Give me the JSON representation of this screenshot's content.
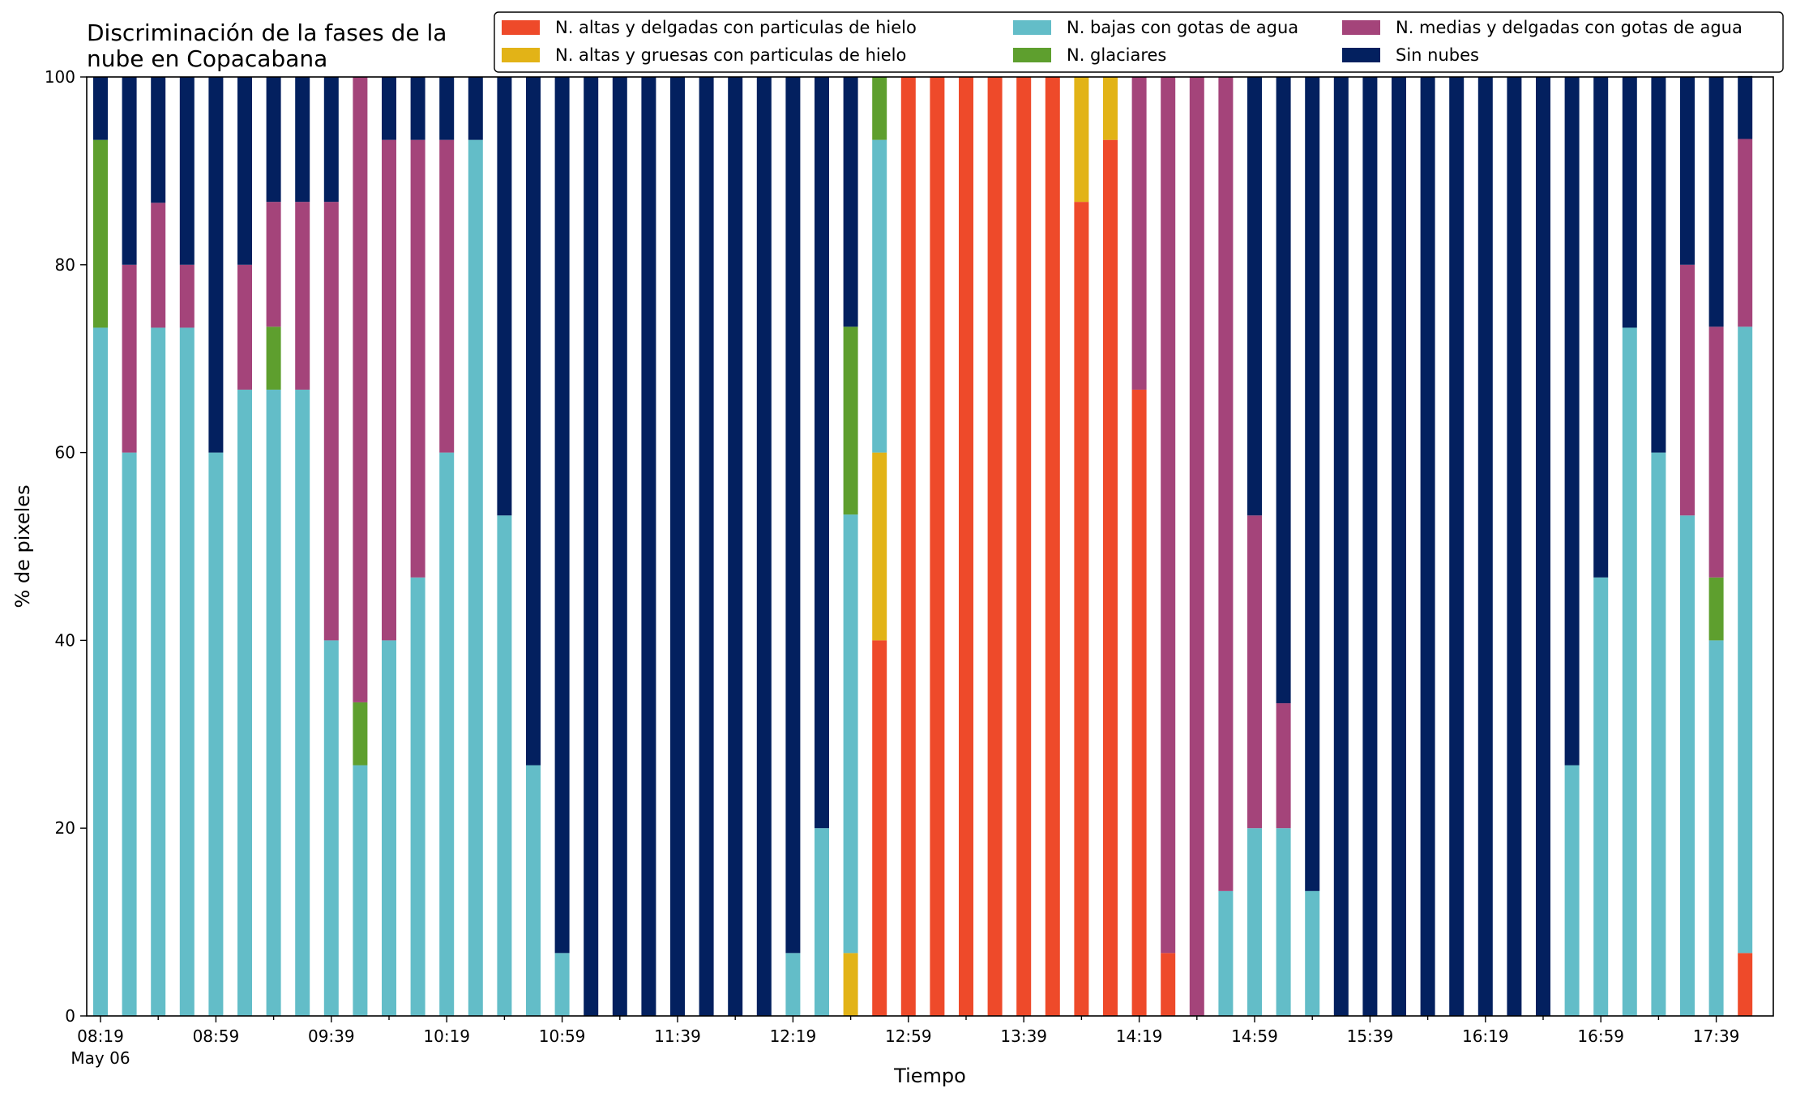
{
  "chart_data": {
    "type": "bar",
    "stacked": true,
    "title": "Discriminación de la fases de la\nnube en Copacabana",
    "xlabel": "Tiempo",
    "ylabel": "% de pixeles",
    "ylim": [
      0,
      100
    ],
    "yticks": [
      0,
      20,
      40,
      60,
      80,
      100
    ],
    "x_tick_labels": [
      "08:19",
      "08:59",
      "09:39",
      "10:19",
      "10:59",
      "11:39",
      "12:19",
      "12:59",
      "13:39",
      "14:19",
      "14:59",
      "15:39",
      "16:19",
      "16:59",
      "17:39"
    ],
    "x_date_label": "May 06",
    "legend_position": "top-right",
    "x": [
      "08:19",
      "08:29",
      "08:39",
      "08:49",
      "08:59",
      "09:09",
      "09:19",
      "09:29",
      "09:39",
      "09:49",
      "09:59",
      "10:09",
      "10:19",
      "10:29",
      "10:39",
      "10:49",
      "10:59",
      "11:09",
      "11:19",
      "11:29",
      "11:39",
      "11:49",
      "11:59",
      "12:09",
      "12:19",
      "12:29",
      "12:39",
      "12:49",
      "12:59",
      "13:09",
      "13:19",
      "13:29",
      "13:39",
      "13:49",
      "13:59",
      "14:09",
      "14:19",
      "14:29",
      "14:39",
      "14:49",
      "14:59",
      "15:09",
      "15:19",
      "15:29",
      "15:39",
      "15:49",
      "15:59",
      "16:09",
      "16:19",
      "16:29",
      "16:39",
      "16:49",
      "16:59",
      "17:09",
      "17:19",
      "17:29",
      "17:39",
      "17:49"
    ],
    "series": [
      {
        "name": "N. altas y delgadas con particulas de hielo",
        "color": "#EE4A2A",
        "values": [
          0,
          0,
          0,
          0,
          0,
          0,
          0,
          0,
          0,
          0,
          0,
          0,
          0,
          0,
          0,
          0,
          0,
          0,
          0,
          0,
          0,
          0,
          0,
          0,
          0,
          0,
          0,
          40,
          100,
          100,
          100,
          100,
          100,
          100,
          86.7,
          93.3,
          66.7,
          6.7,
          0,
          0,
          0,
          0,
          0,
          0,
          0,
          0,
          0,
          0,
          0,
          0,
          0,
          0,
          0,
          0,
          0,
          0,
          0,
          6.7
        ]
      },
      {
        "name": "N. altas y gruesas con particulas de hielo",
        "color": "#E2B317",
        "values": [
          0,
          0,
          0,
          0,
          0,
          0,
          0,
          0,
          0,
          0,
          0,
          0,
          0,
          0,
          0,
          0,
          0,
          0,
          0,
          0,
          0,
          0,
          0,
          0,
          0,
          0,
          6.7,
          20,
          0,
          0,
          0,
          0,
          0,
          0,
          13.3,
          6.7,
          0,
          0,
          0,
          0,
          0,
          0,
          0,
          0,
          0,
          0,
          0,
          0,
          0,
          0,
          0,
          0,
          0,
          0,
          0,
          0,
          0,
          0
        ]
      },
      {
        "name": "N. bajas con gotas de agua",
        "color": "#63BDC8",
        "values": [
          73.3,
          60,
          73.3,
          73.3,
          60,
          66.7,
          66.7,
          66.7,
          40,
          26.7,
          40,
          46.7,
          60,
          93.3,
          53.3,
          26.7,
          6.7,
          0,
          0,
          0,
          0,
          0,
          0,
          0,
          6.7,
          20,
          46.7,
          33.3,
          0,
          0,
          0,
          0,
          0,
          0,
          0,
          0,
          0,
          0,
          0,
          13.3,
          20,
          20,
          13.3,
          0,
          0,
          0,
          0,
          0,
          0,
          0,
          0,
          26.7,
          46.7,
          73.3,
          60,
          53.3,
          40,
          66.7
        ]
      },
      {
        "name": "N. glaciares",
        "color": "#5E9F2E",
        "values": [
          20,
          0,
          0,
          0,
          0,
          0,
          6.7,
          0,
          0,
          6.7,
          0,
          0,
          0,
          0,
          0,
          0,
          0,
          0,
          0,
          0,
          0,
          0,
          0,
          0,
          0,
          0,
          20,
          6.7,
          0,
          0,
          0,
          0,
          0,
          0,
          0,
          0,
          0,
          0,
          0,
          0,
          0,
          0,
          0,
          0,
          0,
          0,
          0,
          0,
          0,
          0,
          0,
          0,
          0,
          0,
          0,
          0,
          6.7,
          0
        ]
      },
      {
        "name": "N. medias y delgadas con gotas de agua",
        "color": "#A4447A",
        "values": [
          0,
          20,
          13.3,
          6.7,
          0,
          13.3,
          13.3,
          20,
          46.7,
          66.6,
          53.3,
          46.6,
          33.3,
          0,
          0,
          0,
          0,
          0,
          0,
          0,
          0,
          0,
          0,
          0,
          0,
          0,
          0,
          0,
          0,
          0,
          0,
          0,
          0,
          0,
          0,
          0,
          33.3,
          93.3,
          100,
          86.7,
          33.3,
          13.3,
          0,
          0,
          0,
          0,
          0,
          0,
          0,
          0,
          0,
          0,
          0,
          0,
          0,
          26.7,
          26.7,
          20
        ]
      },
      {
        "name": "Sin nubes",
        "color": "#03205F",
        "values": [
          6.7,
          20,
          13.4,
          20,
          40,
          20,
          13.3,
          13.3,
          13.3,
          0,
          6.7,
          6.7,
          6.7,
          6.7,
          46.7,
          73.3,
          93.3,
          100,
          100,
          100,
          100,
          100,
          100,
          100,
          93.3,
          80,
          26.6,
          0,
          0,
          0,
          0,
          0,
          0,
          0,
          0,
          0,
          0,
          0,
          0,
          0,
          46.7,
          66.7,
          86.7,
          100,
          100,
          100,
          100,
          100,
          100,
          100,
          100,
          73.3,
          53.3,
          26.7,
          40,
          20,
          26.6,
          6.7
        ]
      }
    ]
  }
}
